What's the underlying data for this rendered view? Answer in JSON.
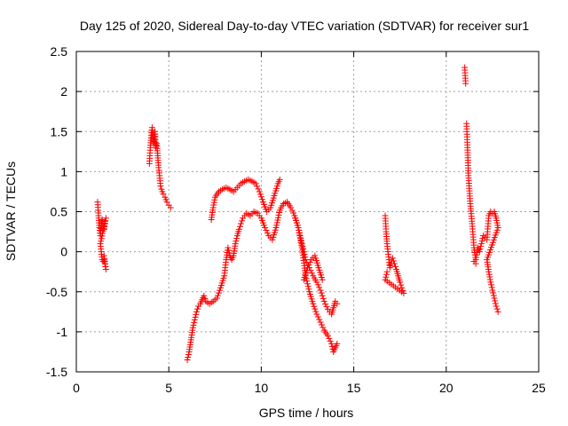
{
  "chart_data": {
    "type": "scatter",
    "title": "Day 125 of 2020, Sidereal Day-to-day VTEC variation (SDTVAR) for receiver sur1",
    "xlabel": "GPS time / hours",
    "ylabel": "SDTVAR / TECUs",
    "xlim": [
      0,
      25
    ],
    "ylim": [
      -1.5,
      2.5
    ],
    "xticks": [
      0,
      5,
      10,
      15,
      20,
      25
    ],
    "yticks": [
      -1.5,
      -1,
      -0.5,
      0,
      0.5,
      1,
      1.5,
      2,
      2.5
    ],
    "xtick_labels": [
      "0",
      "5",
      "10",
      "15",
      "20",
      "25"
    ],
    "ytick_labels": [
      "-1.5",
      "-1",
      "-0.5",
      "0",
      "0.5",
      "1",
      "1.5",
      "2",
      "2.5"
    ],
    "grid": true,
    "marker": "+",
    "color": "#ff0000",
    "segments": [
      [
        [
          1.15,
          0.62
        ],
        [
          1.2,
          0.45
        ],
        [
          1.25,
          0.3
        ],
        [
          1.3,
          0.2
        ],
        [
          1.35,
          0.35
        ],
        [
          1.4,
          0.4
        ],
        [
          1.45,
          0.32
        ],
        [
          1.5,
          0.28
        ],
        [
          1.55,
          0.38
        ],
        [
          1.6,
          0.42
        ],
        [
          1.3,
          0.1
        ],
        [
          1.35,
          0.0
        ],
        [
          1.4,
          -0.1
        ],
        [
          1.45,
          -0.12
        ],
        [
          1.5,
          -0.1
        ],
        [
          1.55,
          -0.15
        ],
        [
          1.6,
          -0.22
        ],
        [
          1.5,
          -0.05
        ]
      ],
      [
        [
          3.95,
          1.1
        ],
        [
          4.0,
          1.3
        ],
        [
          4.05,
          1.45
        ],
        [
          4.1,
          1.55
        ],
        [
          4.15,
          1.4
        ],
        [
          4.2,
          1.35
        ],
        [
          4.25,
          1.5
        ],
        [
          4.3,
          1.3
        ],
        [
          4.35,
          1.35
        ],
        [
          4.4,
          1.2
        ],
        [
          4.45,
          1.05
        ],
        [
          4.5,
          0.95
        ],
        [
          4.55,
          0.82
        ],
        [
          4.6,
          0.78
        ],
        [
          4.7,
          0.72
        ],
        [
          4.8,
          0.68
        ],
        [
          4.9,
          0.62
        ],
        [
          5.0,
          0.58
        ],
        [
          5.1,
          0.55
        ]
      ],
      [
        [
          6.0,
          -1.35
        ],
        [
          6.1,
          -1.25
        ],
        [
          6.2,
          -1.1
        ],
        [
          6.3,
          -0.95
        ],
        [
          6.4,
          -0.85
        ],
        [
          6.5,
          -0.75
        ],
        [
          6.6,
          -0.68
        ],
        [
          6.7,
          -0.65
        ],
        [
          6.8,
          -0.6
        ],
        [
          6.9,
          -0.55
        ],
        [
          7.0,
          -0.62
        ],
        [
          7.2,
          -0.65
        ],
        [
          7.4,
          -0.62
        ],
        [
          7.6,
          -0.58
        ],
        [
          7.8,
          -0.45
        ],
        [
          8.0,
          -0.3
        ],
        [
          8.1,
          -0.1
        ],
        [
          8.2,
          0.05
        ],
        [
          8.3,
          -0.05
        ],
        [
          8.4,
          -0.1
        ],
        [
          8.5,
          -0.05
        ],
        [
          8.6,
          0.1
        ],
        [
          8.7,
          0.2
        ],
        [
          8.8,
          0.28
        ],
        [
          8.9,
          0.35
        ],
        [
          9.0,
          0.42
        ],
        [
          9.2,
          0.48
        ],
        [
          9.4,
          0.45
        ],
        [
          9.6,
          0.5
        ],
        [
          9.8,
          0.48
        ],
        [
          10.0,
          0.42
        ],
        [
          10.2,
          0.3
        ],
        [
          10.4,
          0.2
        ],
        [
          10.6,
          0.15
        ],
        [
          10.8,
          0.3
        ],
        [
          11.0,
          0.52
        ],
        [
          11.2,
          0.6
        ],
        [
          11.4,
          0.62
        ],
        [
          11.6,
          0.55
        ],
        [
          11.8,
          0.45
        ],
        [
          12.0,
          0.3
        ],
        [
          12.2,
          0.1
        ],
        [
          12.4,
          -0.1
        ],
        [
          12.6,
          -0.2
        ],
        [
          12.8,
          -0.3
        ],
        [
          13.0,
          -0.38
        ],
        [
          13.2,
          -0.48
        ],
        [
          13.4,
          -0.62
        ],
        [
          13.6,
          -0.72
        ],
        [
          13.8,
          -0.78
        ],
        [
          13.9,
          -0.7
        ],
        [
          14.0,
          -0.62
        ],
        [
          14.1,
          -0.65
        ]
      ],
      [
        [
          7.3,
          0.4
        ],
        [
          7.4,
          0.55
        ],
        [
          7.5,
          0.68
        ],
        [
          7.7,
          0.75
        ],
        [
          7.9,
          0.78
        ],
        [
          8.1,
          0.8
        ],
        [
          8.3,
          0.78
        ],
        [
          8.5,
          0.75
        ],
        [
          8.7,
          0.8
        ],
        [
          8.9,
          0.85
        ],
        [
          9.1,
          0.88
        ],
        [
          9.3,
          0.9
        ],
        [
          9.5,
          0.88
        ],
        [
          9.7,
          0.85
        ],
        [
          9.9,
          0.75
        ],
        [
          10.1,
          0.62
        ],
        [
          10.3,
          0.5
        ],
        [
          10.5,
          0.55
        ],
        [
          10.7,
          0.7
        ],
        [
          10.9,
          0.85
        ],
        [
          11.0,
          0.9
        ]
      ],
      [
        [
          11.8,
          0.45
        ],
        [
          12.0,
          0.3
        ],
        [
          12.2,
          0.05
        ],
        [
          12.4,
          -0.3
        ],
        [
          12.6,
          -0.5
        ],
        [
          12.8,
          -0.65
        ],
        [
          13.0,
          -0.78
        ],
        [
          13.2,
          -0.88
        ],
        [
          13.4,
          -0.98
        ],
        [
          13.6,
          -1.05
        ],
        [
          13.8,
          -1.15
        ],
        [
          13.9,
          -1.25
        ],
        [
          14.0,
          -1.2
        ],
        [
          14.1,
          -1.15
        ],
        [
          12.3,
          -0.35
        ],
        [
          12.5,
          -0.2
        ],
        [
          12.7,
          -0.1
        ],
        [
          12.9,
          -0.05
        ],
        [
          13.1,
          -0.2
        ],
        [
          13.3,
          -0.35
        ]
      ],
      [
        [
          16.7,
          0.45
        ],
        [
          16.75,
          0.25
        ],
        [
          16.8,
          0.1
        ],
        [
          16.85,
          0.0
        ],
        [
          16.9,
          -0.1
        ],
        [
          16.95,
          -0.2
        ],
        [
          17.0,
          -0.15
        ],
        [
          17.1,
          -0.08
        ],
        [
          17.2,
          -0.15
        ],
        [
          17.3,
          -0.22
        ],
        [
          17.4,
          -0.3
        ],
        [
          17.5,
          -0.38
        ],
        [
          17.6,
          -0.45
        ],
        [
          17.7,
          -0.52
        ],
        [
          16.7,
          -0.35
        ],
        [
          16.8,
          -0.25
        ]
      ],
      [
        [
          21.0,
          2.3
        ],
        [
          21.05,
          2.1
        ],
        [
          21.1,
          1.6
        ],
        [
          21.15,
          1.3
        ],
        [
          21.2,
          0.95
        ],
        [
          21.3,
          0.6
        ],
        [
          21.4,
          0.35
        ],
        [
          21.5,
          0.05
        ],
        [
          21.6,
          -0.1
        ],
        [
          21.7,
          0.05
        ],
        [
          21.8,
          0.0
        ],
        [
          21.9,
          0.1
        ],
        [
          22.0,
          0.2
        ],
        [
          22.1,
          0.18
        ],
        [
          22.2,
          0.15
        ],
        [
          22.3,
          0.45
        ],
        [
          22.4,
          0.5
        ],
        [
          22.5,
          0.48
        ],
        [
          22.6,
          0.5
        ],
        [
          22.7,
          0.42
        ],
        [
          22.8,
          0.3
        ],
        [
          22.2,
          -0.1
        ],
        [
          22.3,
          -0.25
        ],
        [
          22.4,
          -0.38
        ],
        [
          22.5,
          -0.48
        ],
        [
          22.6,
          -0.58
        ],
        [
          22.7,
          -0.68
        ],
        [
          22.8,
          -0.75
        ],
        [
          21.6,
          -0.15
        ],
        [
          21.5,
          -0.12
        ]
      ]
    ]
  }
}
